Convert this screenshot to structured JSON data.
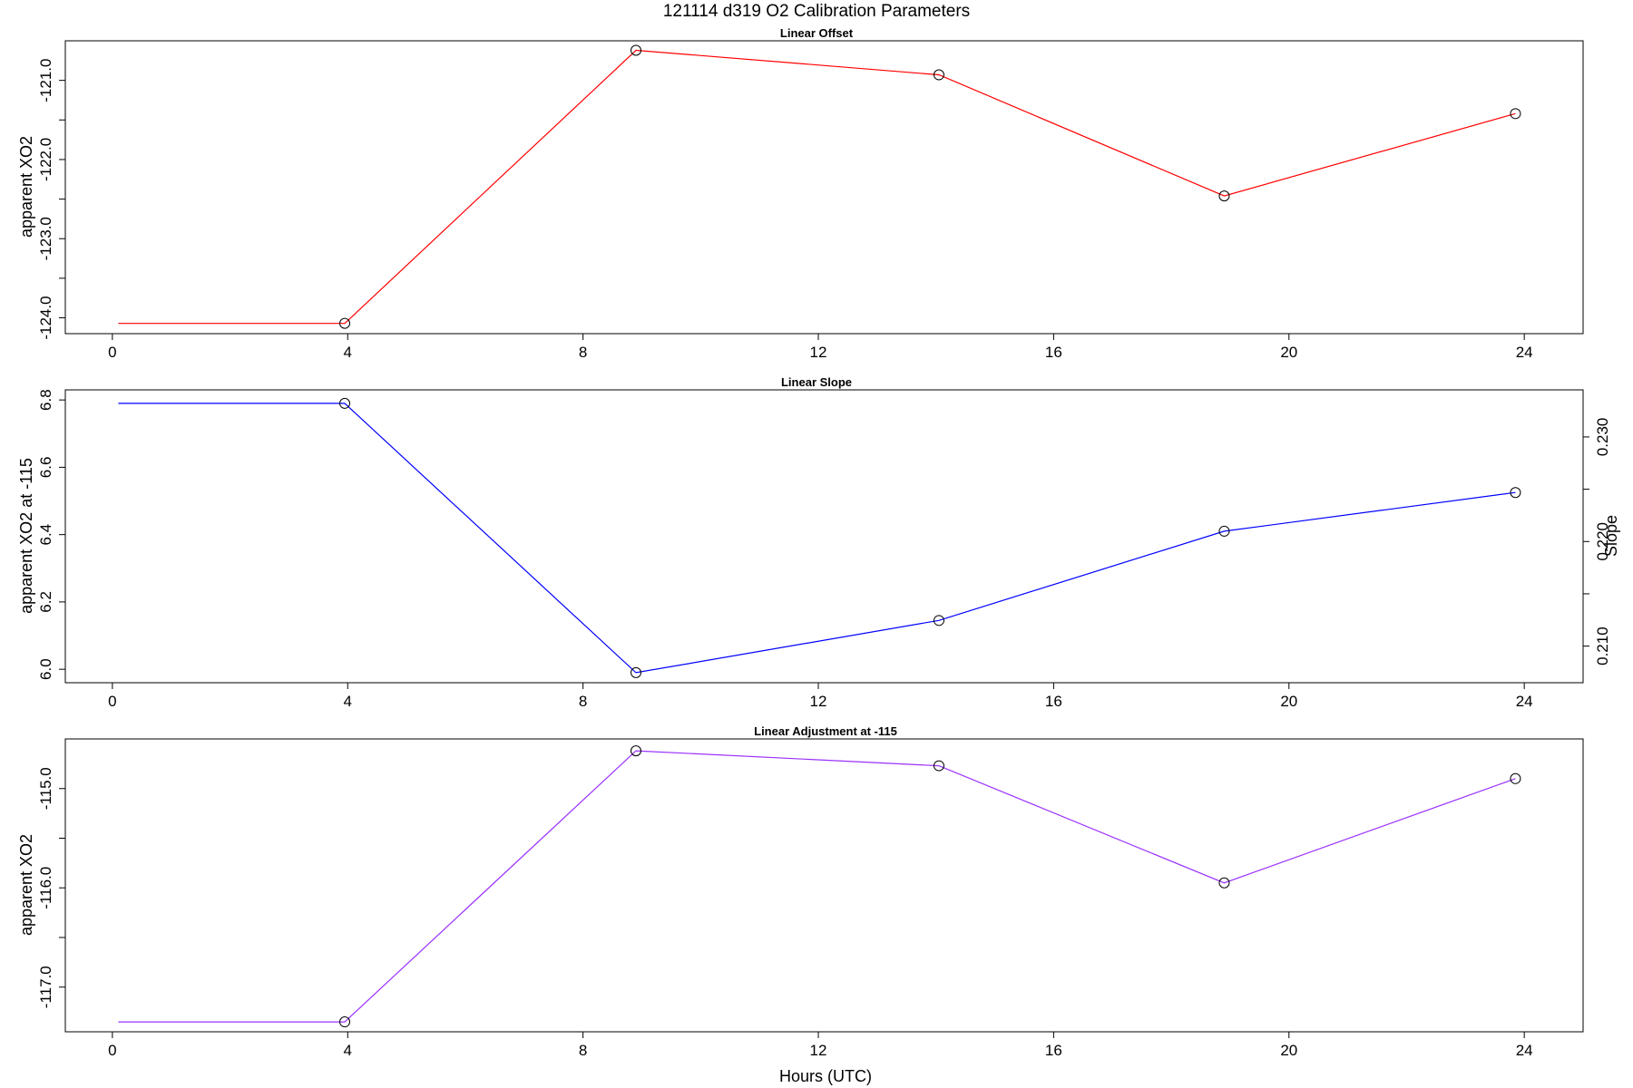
{
  "figure": {
    "title": "121114   d319   O2 Calibration Parameters",
    "xlabel": "Hours (UTC)"
  },
  "chart_data": [
    {
      "type": "line",
      "title": "Linear Offset",
      "xlabel": "",
      "ylabel": "apparent XO2",
      "xlim": [
        -0.8,
        25.0
      ],
      "ylim": [
        -124.2,
        -120.5
      ],
      "x_ticks": [
        0,
        4,
        8,
        12,
        16,
        20,
        24
      ],
      "y_ticks": [
        -124.0,
        -123.5,
        -123.0,
        -122.5,
        -122.0,
        -121.5,
        -121.0
      ],
      "y_tick_labels": {
        "-124.0": "-124.0",
        "-123.0": "-123.0",
        "-122.0": "-122.0",
        "-121.0": "-121.0"
      },
      "series": [
        {
          "color": "#ff0000",
          "x": [
            0.1,
            3.95,
            8.9,
            14.05,
            18.9,
            23.85
          ],
          "y": [
            -124.07,
            -124.07,
            -120.62,
            -120.93,
            -122.46,
            -121.42
          ],
          "markers": [
            false,
            true,
            true,
            true,
            true,
            true
          ]
        }
      ]
    },
    {
      "type": "line",
      "title": "Linear Slope",
      "xlabel": "",
      "ylabel": "apparent XO2 at -115",
      "ylabel_right": "Slope",
      "xlim": [
        -0.8,
        25.0
      ],
      "ylim": [
        5.96,
        6.83
      ],
      "x_ticks": [
        0,
        4,
        8,
        12,
        16,
        20,
        24
      ],
      "y_ticks": [
        6.0,
        6.2,
        6.4,
        6.6,
        6.8
      ],
      "y_tick_labels": {
        "6.0": "6.0",
        "6.2": "6.2",
        "6.4": "6.4",
        "6.6": "6.6",
        "6.8": "6.8"
      },
      "right_axis": {
        "lim": [
          0.2065,
          0.2345
        ],
        "ticks": [
          0.21,
          0.215,
          0.22,
          0.225,
          0.23
        ],
        "tick_labels": {
          "0.21": "0.210",
          "0.22": "0.220",
          "0.23": "0.230"
        }
      },
      "series": [
        {
          "color": "#0000ff",
          "x": [
            0.1,
            3.95,
            8.9,
            14.05,
            18.9,
            23.85
          ],
          "y": [
            6.79,
            6.79,
            5.99,
            6.145,
            6.41,
            6.525
          ],
          "markers": [
            false,
            true,
            true,
            true,
            true,
            true
          ]
        }
      ]
    },
    {
      "type": "line",
      "title": "Linear Adjustment at -115",
      "xlabel": "Hours (UTC)",
      "ylabel": "apparent XO2",
      "xlim": [
        -0.8,
        25.0
      ],
      "ylim": [
        -117.45,
        -114.5
      ],
      "x_ticks": [
        0,
        4,
        8,
        12,
        16,
        20,
        24
      ],
      "y_ticks": [
        -117.0,
        -116.5,
        -116.0,
        -115.5,
        -115.0
      ],
      "y_tick_labels": {
        "-117.0": "-117.0",
        "-116.0": "-116.0",
        "-115.0": "-115.0"
      },
      "series": [
        {
          "color": "#9b30ff",
          "x": [
            0.1,
            3.95,
            8.9,
            14.05,
            18.9,
            23.85
          ],
          "y": [
            -117.35,
            -117.35,
            -114.62,
            -114.77,
            -115.95,
            -114.9
          ],
          "markers": [
            false,
            true,
            true,
            true,
            true,
            true
          ]
        }
      ]
    }
  ]
}
